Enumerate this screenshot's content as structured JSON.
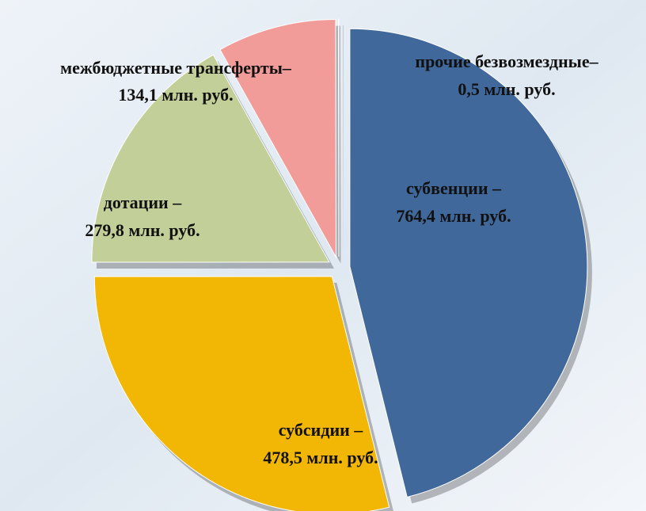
{
  "chart_data": {
    "type": "pie",
    "categories": [
      "субвенции –",
      "субсидии –",
      "дотации –",
      "межбюджетные трансферты–",
      "прочие безвозмездные–"
    ],
    "values": [
      764.4,
      478.5,
      279.8,
      134.1,
      0.5
    ],
    "value_labels": [
      "764,4 млн. руб.",
      "478,5 млн. руб.",
      "279,8 млн. руб.",
      "134,1 млн. руб.",
      "0,5 млн. руб."
    ],
    "colors": [
      "#40689b",
      "#f2b705",
      "#c2cf98",
      "#f29c9a",
      "#e8e8e8"
    ]
  }
}
